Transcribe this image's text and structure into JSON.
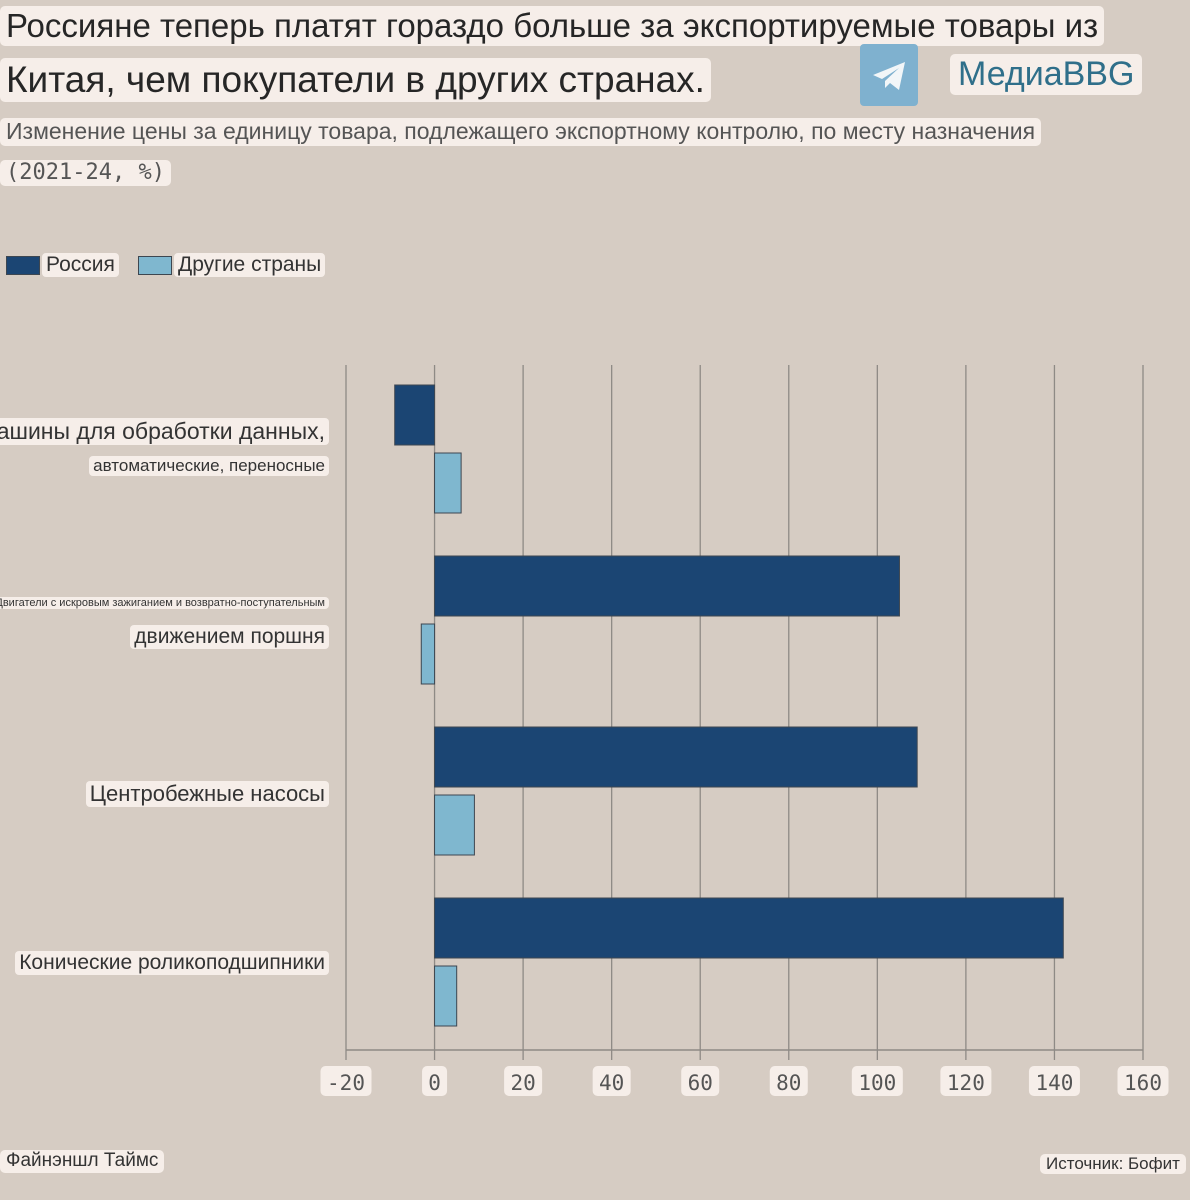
{
  "header": {
    "title_line1": "Россияне теперь платят гораздо больше за экспортируемые товары из",
    "title_line2": "Китая, чем покупатели в других странах.",
    "subtitle": "Изменение цены за единицу товара, подлежащего экспортному контролю, по месту назначения",
    "period": "(2021-24, %)",
    "brand": "МедиаBBG",
    "brand_icon": "telegram-icon"
  },
  "footer": {
    "source_left": "Файнэншл Таймс",
    "source_right": "Источник: Бофит"
  },
  "colors": {
    "russia": "#1b4573",
    "others": "#7fb7cf",
    "grid": "#8e8a85"
  },
  "chart_data": {
    "type": "bar",
    "orientation": "horizontal",
    "categories": [
      [
        "Машины для обработки данных,",
        "автоматические, переносные"
      ],
      [
        "Двигатели с искровым зажиганием и возвратно-поступательным",
        "движением поршня"
      ],
      [
        "Центробежные насосы"
      ],
      [
        "Конические роликоподшипники"
      ]
    ],
    "series": [
      {
        "name": "Россия",
        "values": [
          -9,
          105,
          109,
          142
        ]
      },
      {
        "name": "Другие страны",
        "values": [
          6,
          -3,
          9,
          5
        ]
      }
    ],
    "xlim": [
      -20,
      160
    ],
    "xticks": [
      "-20",
      "0",
      "20",
      "40",
      "60",
      "80",
      "100",
      "120",
      "140",
      "160"
    ],
    "grid": "vertical",
    "legend": "top-left"
  }
}
